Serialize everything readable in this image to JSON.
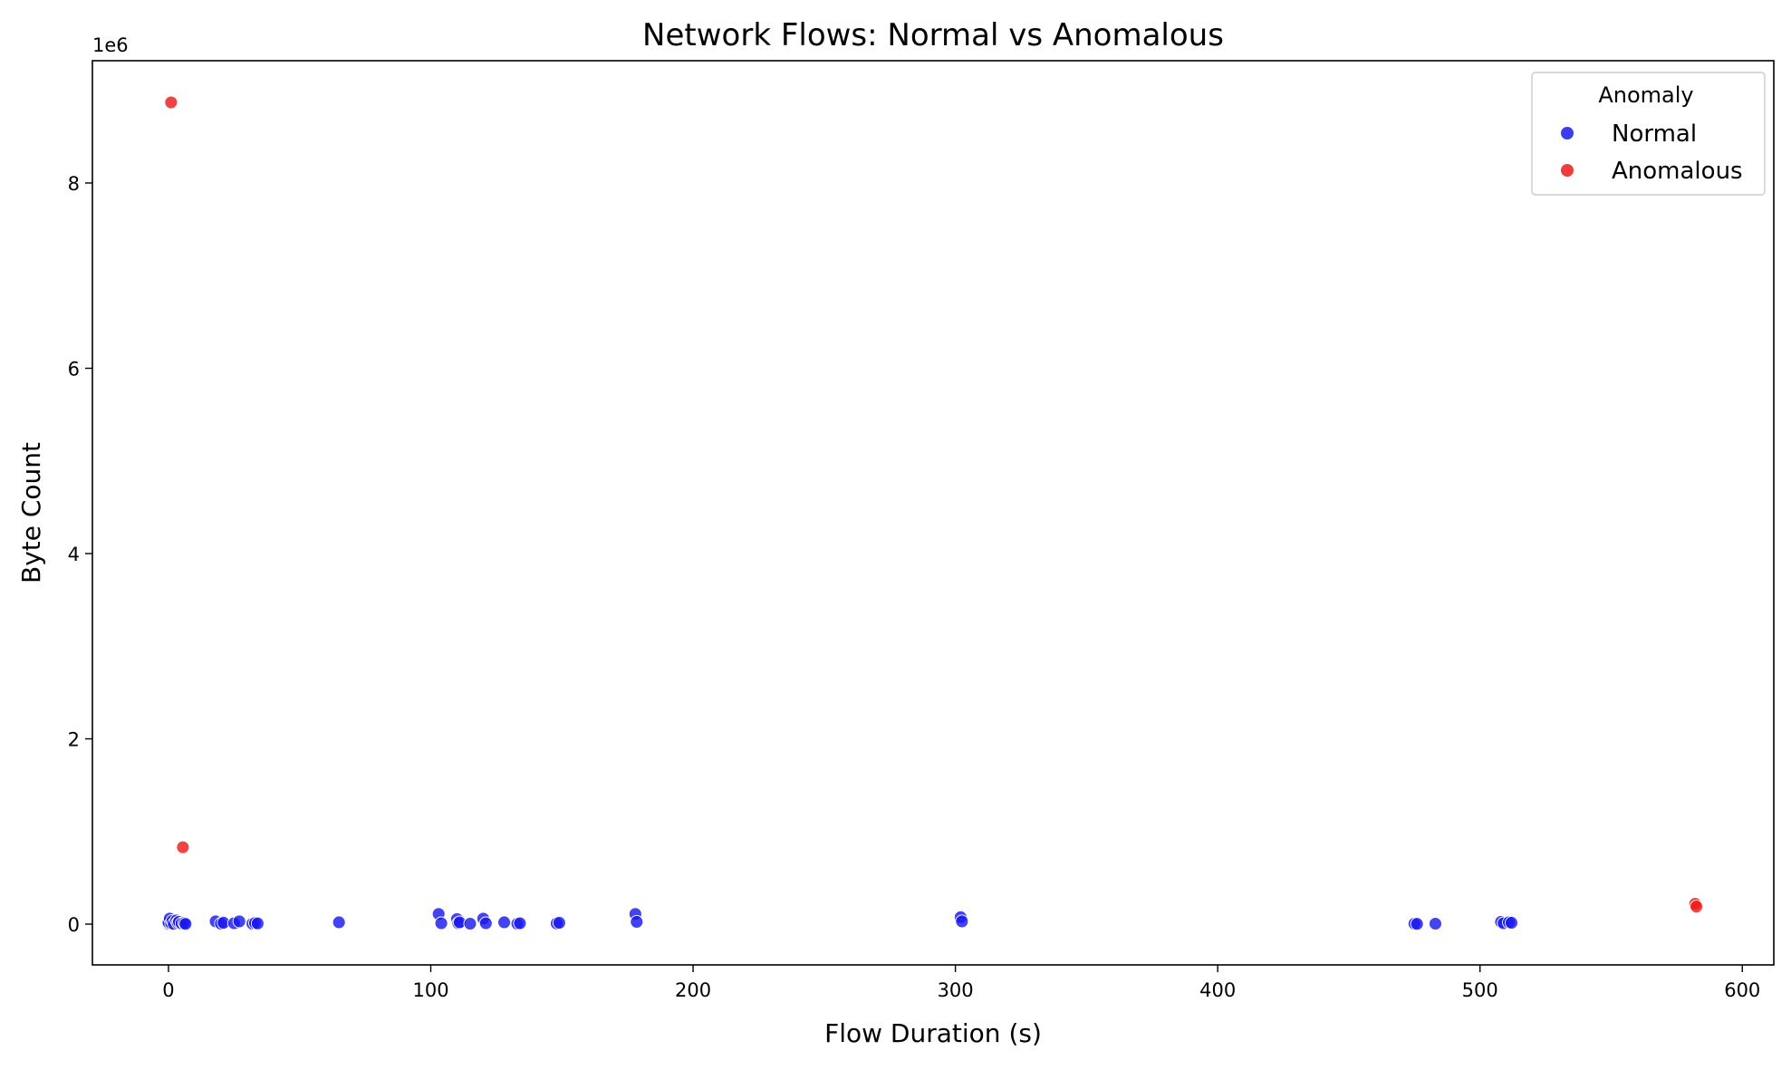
{
  "chart_data": {
    "type": "scatter",
    "title": "Network Flows: Normal vs Anomalous",
    "xlabel": "Flow Duration (s)",
    "ylabel": "Byte Count",
    "y_offset_label": "1e6",
    "y_scale_factor": 1000000,
    "xlim": [
      -29,
      612
    ],
    "ylim": [
      -440000,
      9320000
    ],
    "x_ticks": [
      0,
      100,
      200,
      300,
      400,
      500,
      600
    ],
    "y_ticks": [
      0,
      2000000,
      4000000,
      6000000,
      8000000
    ],
    "y_tick_labels": [
      "0",
      "2",
      "4",
      "6",
      "8"
    ],
    "grid": false,
    "legend": {
      "title": "Anomaly",
      "position": "top-right",
      "entries": [
        {
          "label": "Normal",
          "color": "#1a1aee"
        },
        {
          "label": "Anomalous",
          "color": "#ee1a1a"
        }
      ]
    },
    "series": [
      {
        "name": "Normal",
        "color": "#1a1aee",
        "points": [
          [
            0,
            5000
          ],
          [
            0,
            20000
          ],
          [
            0.5,
            60000
          ],
          [
            1,
            10000
          ],
          [
            1.5,
            35000
          ],
          [
            2,
            3000
          ],
          [
            3,
            40000
          ],
          [
            3.5,
            15000
          ],
          [
            4,
            25000
          ],
          [
            5,
            8000
          ],
          [
            6,
            12000
          ],
          [
            6.5,
            2000
          ],
          [
            18,
            30000
          ],
          [
            20,
            5000
          ],
          [
            21,
            15000
          ],
          [
            25,
            10000
          ],
          [
            27,
            30000
          ],
          [
            32,
            5000
          ],
          [
            33,
            12000
          ],
          [
            34,
            8000
          ],
          [
            65,
            20000
          ],
          [
            103,
            110000
          ],
          [
            104,
            10000
          ],
          [
            110,
            55000
          ],
          [
            110.5,
            10000
          ],
          [
            111,
            20000
          ],
          [
            115,
            5000
          ],
          [
            120,
            60000
          ],
          [
            121,
            10000
          ],
          [
            128,
            20000
          ],
          [
            133,
            5000
          ],
          [
            134,
            10000
          ],
          [
            148,
            8000
          ],
          [
            149,
            15000
          ],
          [
            178,
            110000
          ],
          [
            178.5,
            25000
          ],
          [
            302,
            75000
          ],
          [
            302.5,
            30000
          ],
          [
            475,
            5000
          ],
          [
            476,
            3000
          ],
          [
            483,
            5000
          ],
          [
            508,
            25000
          ],
          [
            509,
            10000
          ],
          [
            511,
            20000
          ],
          [
            512,
            15000
          ]
        ]
      },
      {
        "name": "Anomalous",
        "color": "#ee1a1a",
        "points": [
          [
            1,
            8870000
          ],
          [
            5.5,
            830000
          ],
          [
            582,
            220000
          ],
          [
            582.5,
            190000
          ]
        ]
      }
    ]
  }
}
